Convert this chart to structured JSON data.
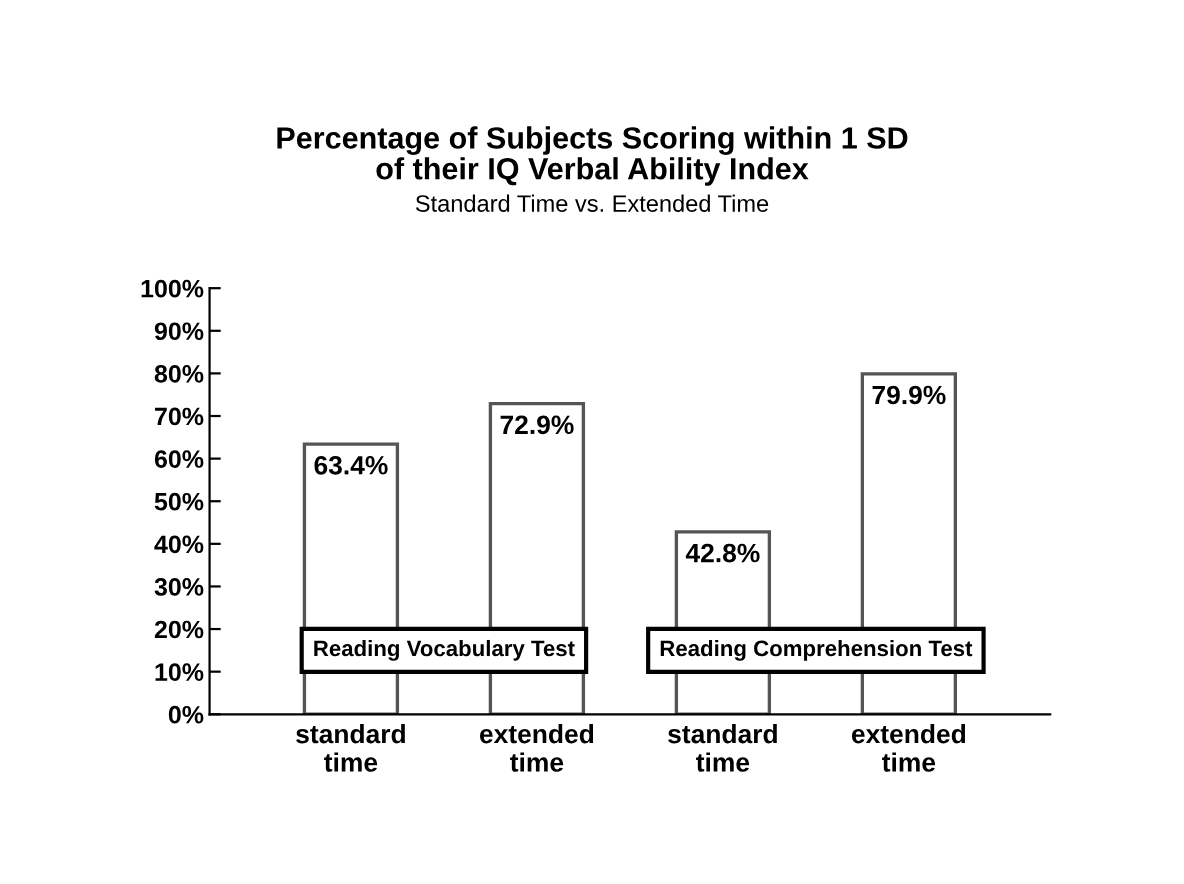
{
  "chart_data": {
    "type": "bar",
    "title": "Percentage of Subjects Scoring within 1 SD\nof their IQ Verbal Ability Index",
    "subtitle": "Standard Time vs. Extended Time",
    "categories": [
      "standard\ntime",
      "extended\ntime",
      "standard\ntime",
      "extended\ntime"
    ],
    "values": [
      63.4,
      72.9,
      42.8,
      79.9
    ],
    "color": "#ffffff",
    "value_labels": [
      "63.4%",
      "72.9%",
      "42.8%",
      "79.9%"
    ],
    "annotations": [
      "Reading Vocabulary Test",
      "Reading Comprehension Test"
    ],
    "ylim": [
      0,
      100
    ],
    "yticks": [
      {
        "value": 0,
        "label": "0%"
      },
      {
        "value": 10,
        "label": "10%"
      },
      {
        "value": 20,
        "label": "20%"
      },
      {
        "value": 30,
        "label": "30%"
      },
      {
        "value": 40,
        "label": "40%"
      },
      {
        "value": 50,
        "label": "50%"
      },
      {
        "value": 60,
        "label": "60%"
      },
      {
        "value": 70,
        "label": "70%"
      },
      {
        "value": 80,
        "label": "80%"
      },
      {
        "value": 90,
        "label": "90%"
      },
      {
        "value": 100,
        "label": "100%"
      }
    ],
    "grid": false,
    "legend": false
  }
}
